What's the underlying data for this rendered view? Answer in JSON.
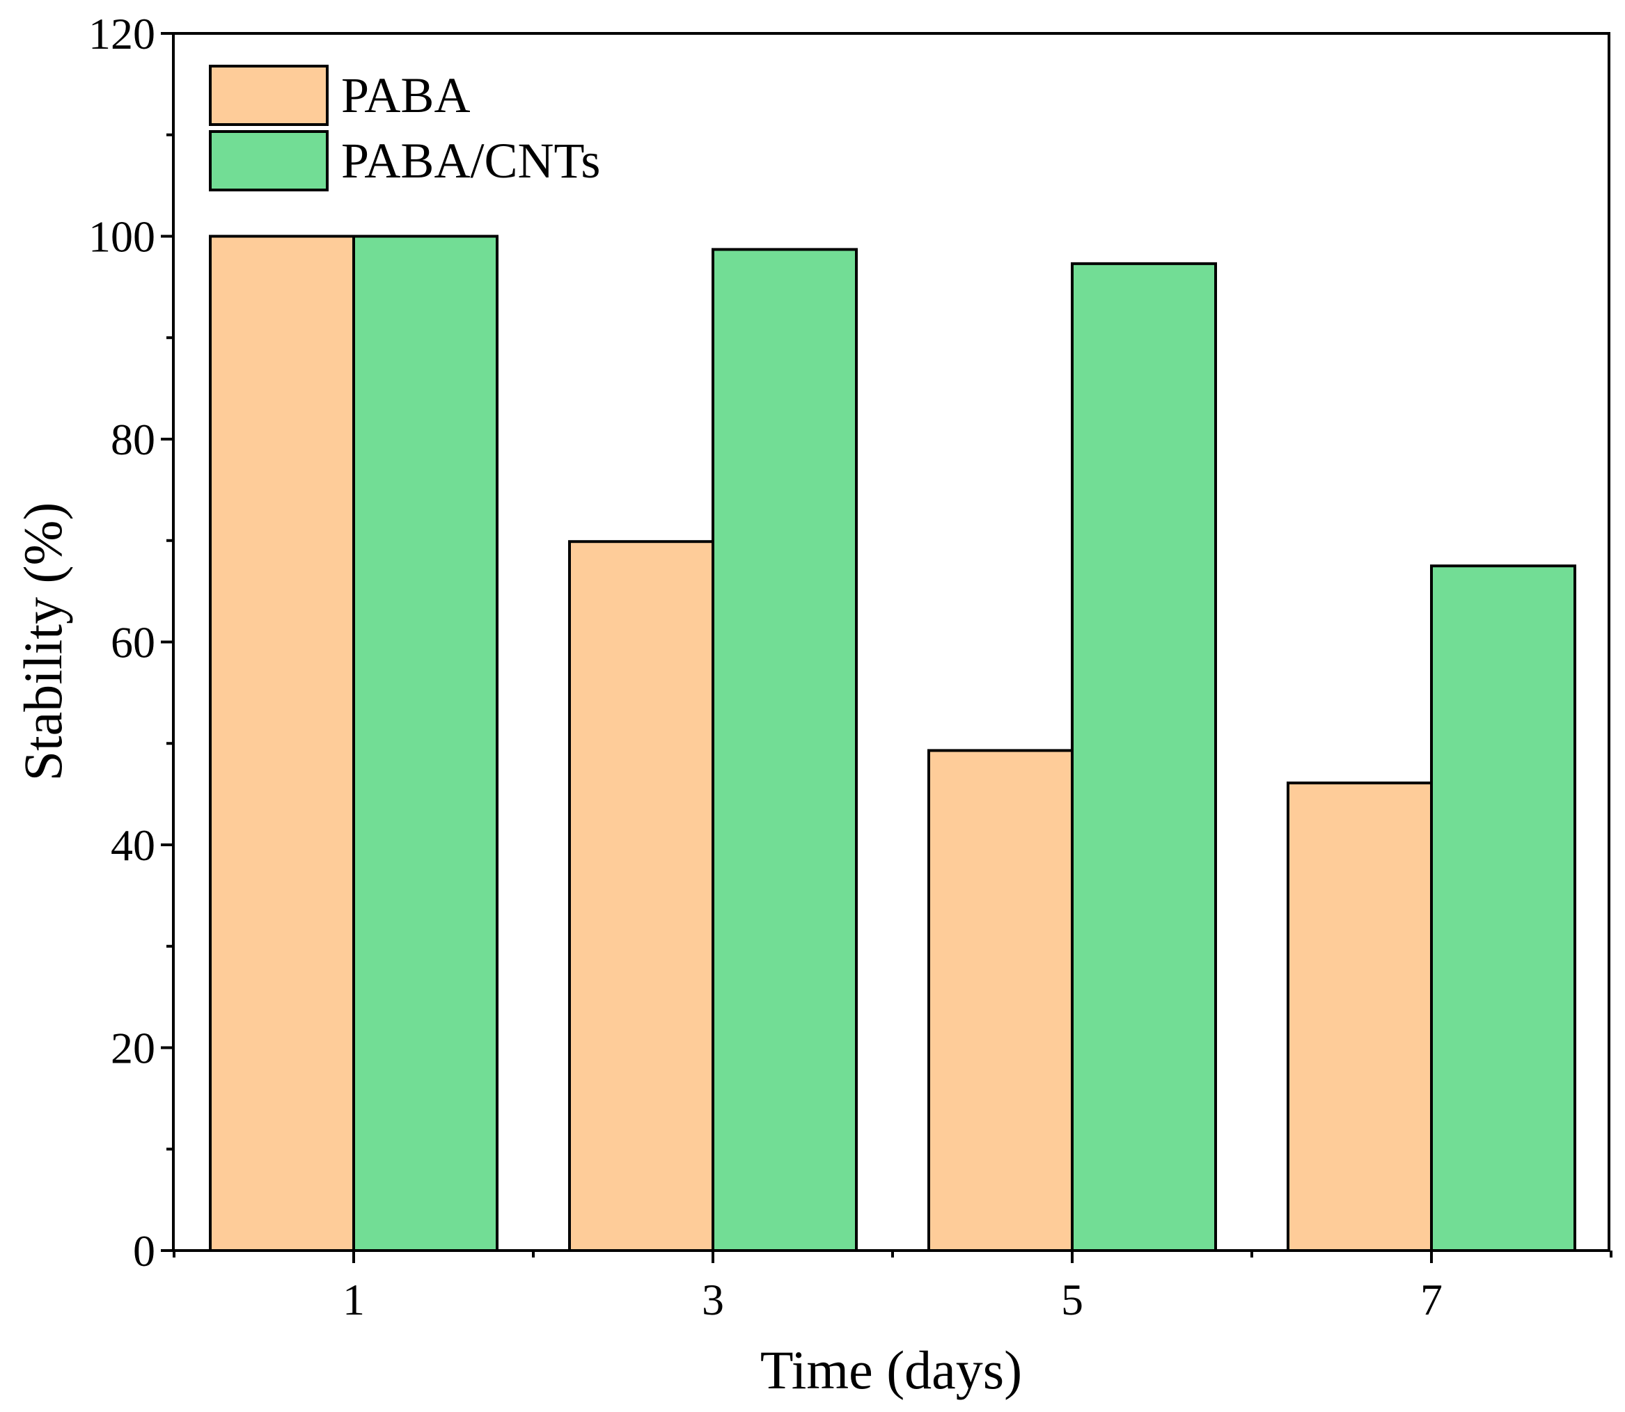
{
  "chart_data": {
    "type": "bar",
    "title": "",
    "xlabel": "Time (days)",
    "ylabel": "Stability (%)",
    "categories": [
      "1",
      "3",
      "5",
      "7"
    ],
    "series": [
      {
        "name": "PABA",
        "values": [
          100,
          69.9,
          49.3,
          46.1
        ],
        "color": "#FECC99"
      },
      {
        "name": "PABA/CNTs",
        "values": [
          100,
          98.7,
          97.3,
          67.5
        ],
        "color": "#72DD95"
      }
    ],
    "ylim": [
      0,
      120
    ],
    "yticks": [
      0,
      20,
      40,
      60,
      80,
      100,
      120
    ],
    "grid": false,
    "legend": {
      "position": "top-left"
    }
  }
}
